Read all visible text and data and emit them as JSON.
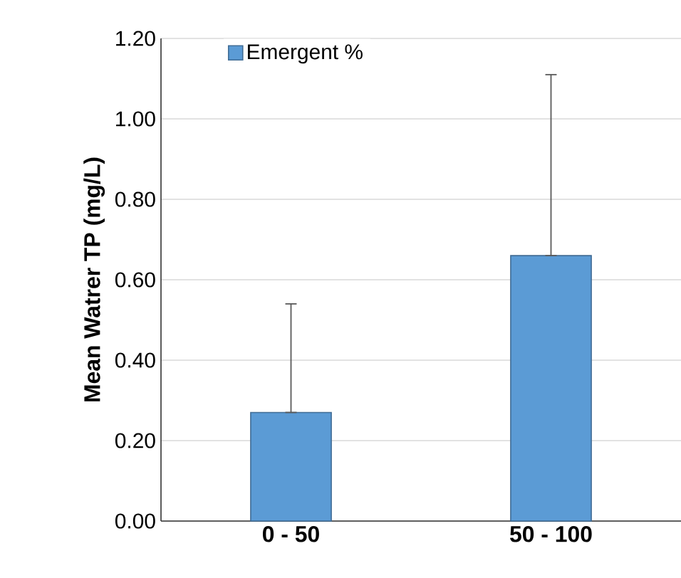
{
  "chart_data": {
    "type": "bar",
    "ylabel": "Mean Watrer TP (mg/L)",
    "categories": [
      "0 - 50",
      "50 - 100"
    ],
    "series": [
      {
        "name": "Emergent %",
        "color": "#5b9bd5",
        "values": [
          0.27,
          0.66
        ],
        "errors": [
          [
            0.27,
            0.54
          ],
          [
            0.66,
            1.11
          ]
        ]
      }
    ],
    "ylim": [
      0,
      1.2
    ],
    "yticks": [
      {
        "value": 0,
        "label": "0.00"
      },
      {
        "value": 0.2,
        "label": "0.20"
      },
      {
        "value": 0.4,
        "label": "0.40"
      },
      {
        "value": 0.6,
        "label": "0.60"
      },
      {
        "value": 0.8,
        "label": "0.80"
      },
      {
        "value": 1.0,
        "label": "1.00"
      },
      {
        "value": 1.2,
        "label": "1.20"
      }
    ],
    "grid": "y",
    "legend": "top"
  }
}
